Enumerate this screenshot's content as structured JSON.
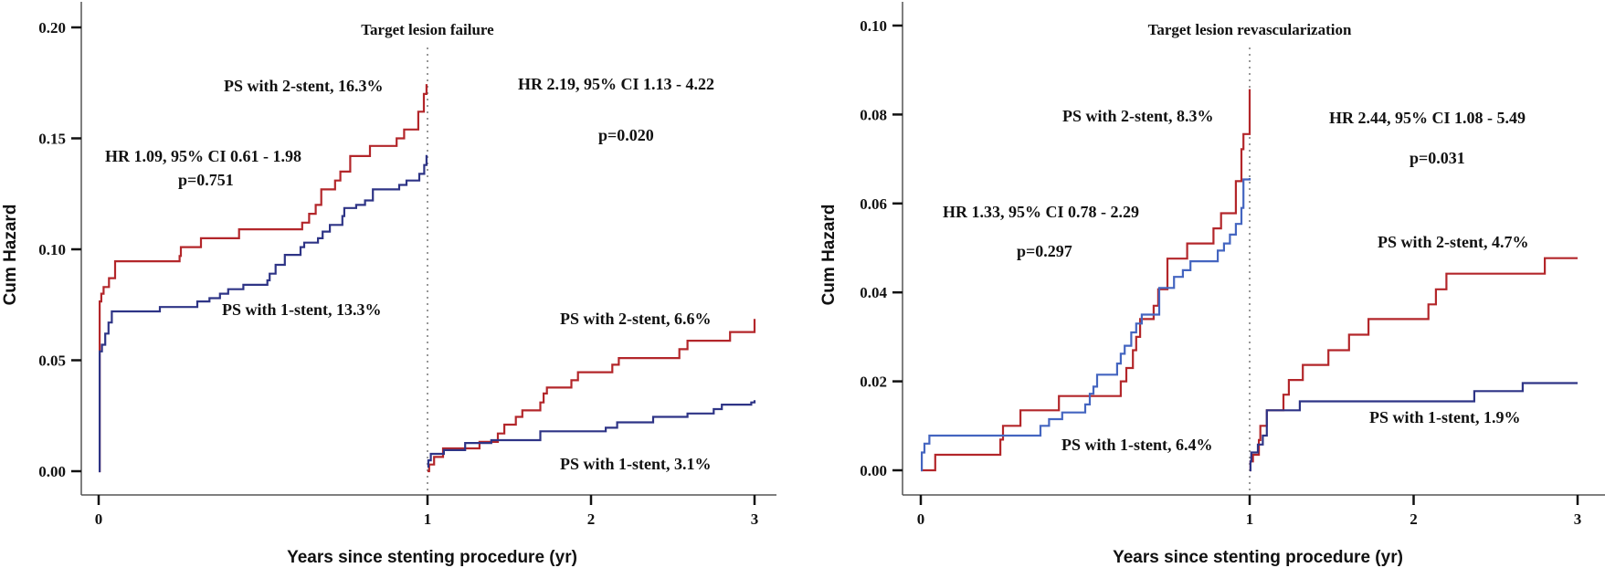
{
  "chart_data": [
    {
      "type": "line",
      "title": "Target lesion failure",
      "xlabel": "Years since stenting procedure (yr)",
      "ylabel": "Cum Hazard",
      "xlim": [
        0,
        3
      ],
      "ylim": [
        0,
        0.2
      ],
      "x_ticks": [
        "0",
        "1",
        "2",
        "3"
      ],
      "y_ticks": [
        "0.00",
        "0.05",
        "0.10",
        "0.15",
        "0.20"
      ],
      "landmark_x": 1,
      "step": true,
      "series": [
        {
          "name": "PS with 2-stent",
          "color": "#b3262a",
          "year1": [
            [
              0,
              0
            ],
            [
              0.003,
              0.0765
            ],
            [
              0.008,
              0.08
            ],
            [
              0.015,
              0.083
            ],
            [
              0.0315,
              0.087
            ],
            [
              0.05,
              0.0946
            ],
            [
              0.246,
              0.097
            ],
            [
              0.25,
              0.101
            ],
            [
              0.311,
              0.105
            ],
            [
              0.427,
              0.109
            ],
            [
              0.619,
              0.112
            ],
            [
              0.64,
              0.116
            ],
            [
              0.66,
              0.12
            ],
            [
              0.677,
              0.127
            ],
            [
              0.719,
              0.131
            ],
            [
              0.735,
              0.135
            ],
            [
              0.765,
              0.142
            ],
            [
              0.825,
              0.1466
            ],
            [
              0.906,
              0.15
            ],
            [
              0.929,
              0.154
            ],
            [
              0.972,
              0.162
            ],
            [
              0.989,
              0.17
            ],
            [
              0.997,
              0.174
            ],
            [
              1.0,
              0.174
            ]
          ],
          "after1": [
            [
              1,
              0
            ],
            [
              1.01,
              0.003
            ],
            [
              1.04,
              0.0064
            ],
            [
              1.095,
              0.0103
            ],
            [
              1.318,
              0.0132
            ],
            [
              1.43,
              0.017
            ],
            [
              1.47,
              0.021
            ],
            [
              1.54,
              0.0245
            ],
            [
              1.58,
              0.0274
            ],
            [
              1.69,
              0.031
            ],
            [
              1.71,
              0.035
            ],
            [
              1.73,
              0.0377
            ],
            [
              1.88,
              0.041
            ],
            [
              1.92,
              0.0446
            ],
            [
              2.13,
              0.048
            ],
            [
              2.17,
              0.051
            ],
            [
              2.54,
              0.055
            ],
            [
              2.59,
              0.0588
            ],
            [
              2.85,
              0.0627
            ],
            [
              3.0,
              0.0686
            ]
          ]
        },
        {
          "name": "PS with 1-stent",
          "color": "#2e3486",
          "color_year1": "#2e3486",
          "year1": [
            [
              0,
              0
            ],
            [
              0.003,
              0.054
            ],
            [
              0.01,
              0.057
            ],
            [
              0.02,
              0.062
            ],
            [
              0.03,
              0.067
            ],
            [
              0.04,
              0.072
            ],
            [
              0.186,
              0.074
            ],
            [
              0.3,
              0.0765
            ],
            [
              0.337,
              0.078
            ],
            [
              0.369,
              0.08
            ],
            [
              0.394,
              0.082
            ],
            [
              0.44,
              0.084
            ],
            [
              0.513,
              0.086
            ],
            [
              0.52,
              0.089
            ],
            [
              0.538,
              0.093
            ],
            [
              0.566,
              0.0975
            ],
            [
              0.614,
              0.101
            ],
            [
              0.625,
              0.103
            ],
            [
              0.667,
              0.105
            ],
            [
              0.681,
              0.108
            ],
            [
              0.703,
              0.111
            ],
            [
              0.741,
              0.115
            ],
            [
              0.747,
              0.1186
            ],
            [
              0.783,
              0.12
            ],
            [
              0.81,
              0.122
            ],
            [
              0.834,
              0.127
            ],
            [
              0.914,
              0.129
            ],
            [
              0.936,
              0.131
            ],
            [
              0.975,
              0.134
            ],
            [
              0.99,
              0.138
            ],
            [
              0.997,
              0.142
            ],
            [
              1.0,
              0.142
            ]
          ],
          "after1": [
            [
              1,
              0.002
            ],
            [
              1.005,
              0.0049
            ],
            [
              1.02,
              0.0078
            ],
            [
              1.1,
              0.0095
            ],
            [
              1.23,
              0.0127
            ],
            [
              1.39,
              0.014
            ],
            [
              1.69,
              0.018
            ],
            [
              2.09,
              0.0196
            ],
            [
              2.16,
              0.022
            ],
            [
              2.38,
              0.0245
            ],
            [
              2.59,
              0.026
            ],
            [
              2.75,
              0.028
            ],
            [
              2.8,
              0.03
            ],
            [
              2.98,
              0.031
            ],
            [
              3.0,
              0.032
            ]
          ]
        }
      ],
      "annotations": {
        "two_stent_year1": "PS with 2-stent, 16.3%",
        "one_stent_year1": "PS with 1-stent, 13.3%",
        "hr_year1": "HR 1.09, 95% CI 0.61 - 1.98",
        "p_year1": "p=0.751",
        "hr_after1": "HR 2.19, 95% CI 1.13 - 4.22",
        "p_after1": "p=0.020",
        "two_stent_after1": "PS with 2-stent, 6.6%",
        "one_stent_after1": "PS with 1-stent, 3.1%"
      }
    },
    {
      "type": "line",
      "title": "Target lesion revascularization",
      "xlabel": "Years since stenting procedure (yr)",
      "ylabel": "Cum Hazard",
      "xlim": [
        0,
        3
      ],
      "ylim": [
        0,
        0.1
      ],
      "x_ticks": [
        "0",
        "1",
        "2",
        "3"
      ],
      "y_ticks": [
        "0.00",
        "0.02",
        "0.04",
        "0.06",
        "0.08",
        "0.10"
      ],
      "landmark_x": 1,
      "step": true,
      "series": [
        {
          "name": "PS with 2-stent",
          "color": "#b3262a",
          "year1": [
            [
              0,
              0
            ],
            [
              0.044,
              0.0035
            ],
            [
              0.242,
              0.0069
            ],
            [
              0.25,
              0.01
            ],
            [
              0.303,
              0.0135
            ],
            [
              0.42,
              0.0167
            ],
            [
              0.608,
              0.02
            ],
            [
              0.625,
              0.023
            ],
            [
              0.645,
              0.027
            ],
            [
              0.655,
              0.03
            ],
            [
              0.667,
              0.034
            ],
            [
              0.708,
              0.037
            ],
            [
              0.722,
              0.0407
            ],
            [
              0.75,
              0.0476
            ],
            [
              0.81,
              0.051
            ],
            [
              0.89,
              0.0544
            ],
            [
              0.913,
              0.0578
            ],
            [
              0.958,
              0.065
            ],
            [
              0.975,
              0.0722
            ],
            [
              0.981,
              0.0756
            ],
            [
              1.0,
              0.0857
            ]
          ],
          "after1": [
            [
              1,
              0
            ],
            [
              1.005,
              0.002
            ],
            [
              1.02,
              0.0035
            ],
            [
              1.056,
              0.0068
            ],
            [
              1.065,
              0.01
            ],
            [
              1.105,
              0.0135
            ],
            [
              1.206,
              0.017
            ],
            [
              1.239,
              0.0203
            ],
            [
              1.324,
              0.0237
            ],
            [
              1.48,
              0.027
            ],
            [
              1.606,
              0.0305
            ],
            [
              1.725,
              0.034
            ],
            [
              2.09,
              0.0373
            ],
            [
              2.136,
              0.0407
            ],
            [
              2.2,
              0.0442
            ],
            [
              2.8,
              0.0477
            ],
            [
              3.0,
              0.0477
            ]
          ]
        },
        {
          "name": "PS with 1-stent",
          "color": "#2e3486",
          "color_year1": "#4465c0",
          "year1": [
            [
              0,
              0
            ],
            [
              0.003,
              0.004
            ],
            [
              0.011,
              0.006
            ],
            [
              0.026,
              0.0078
            ],
            [
              0.364,
              0.01
            ],
            [
              0.39,
              0.0115
            ],
            [
              0.43,
              0.013
            ],
            [
              0.5,
              0.0148
            ],
            [
              0.514,
              0.0172
            ],
            [
              0.525,
              0.0188
            ],
            [
              0.536,
              0.0215
            ],
            [
              0.597,
              0.024
            ],
            [
              0.608,
              0.0262
            ],
            [
              0.62,
              0.028
            ],
            [
              0.64,
              0.031
            ],
            [
              0.655,
              0.033
            ],
            [
              0.672,
              0.035
            ],
            [
              0.725,
              0.041
            ],
            [
              0.77,
              0.0435
            ],
            [
              0.797,
              0.045
            ],
            [
              0.82,
              0.047
            ],
            [
              0.903,
              0.0494
            ],
            [
              0.922,
              0.051
            ],
            [
              0.94,
              0.053
            ],
            [
              0.958,
              0.0554
            ],
            [
              0.975,
              0.059
            ],
            [
              0.981,
              0.0654
            ],
            [
              1.0,
              0.0657
            ]
          ],
          "after1": [
            [
              1,
              0
            ],
            [
              1.005,
              0.002
            ],
            [
              1.01,
              0.004
            ],
            [
              1.05,
              0.0058
            ],
            [
              1.08,
              0.0078
            ],
            [
              1.105,
              0.0135
            ],
            [
              1.306,
              0.0155
            ],
            [
              2.37,
              0.0178
            ],
            [
              2.665,
              0.0196
            ],
            [
              3.0,
              0.0196
            ]
          ]
        }
      ],
      "annotations": {
        "two_stent_year1": "PS with 2-stent, 8.3%",
        "one_stent_year1": "PS with 1-stent, 6.4%",
        "hr_year1": "HR 1.33, 95% CI 0.78 - 2.29",
        "p_year1": "p=0.297",
        "hr_after1": "HR 2.44, 95% CI 1.08 - 5.49",
        "p_after1": "p=0.031",
        "two_stent_after1": "PS with 2-stent, 4.7%",
        "one_stent_after1": "PS with 1-stent, 1.9%"
      }
    }
  ]
}
